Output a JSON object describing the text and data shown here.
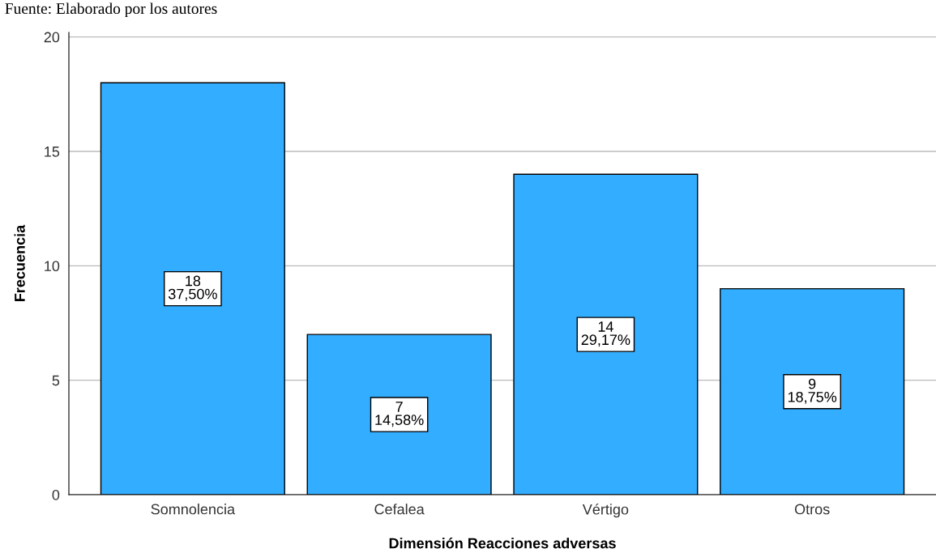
{
  "chart_data": {
    "type": "bar",
    "categories": [
      "Somnolencia",
      "Cefalea",
      "Vértigo",
      "Otros"
    ],
    "values": [
      18,
      7,
      14,
      9
    ],
    "value_labels": [
      "18\n37,50%",
      "7\n14,58%",
      "14\n29,17%",
      "9\n18,75%"
    ],
    "color": "#33adff",
    "xlabel": "Dimensión Reacciones adversas",
    "ylabel": "Frecuencia",
    "ylim": [
      0,
      20.2
    ],
    "yticks": [
      0,
      5,
      10,
      15,
      20
    ],
    "grid": "y",
    "annotations": [
      "Fuente: Elaborado por los autores"
    ]
  }
}
